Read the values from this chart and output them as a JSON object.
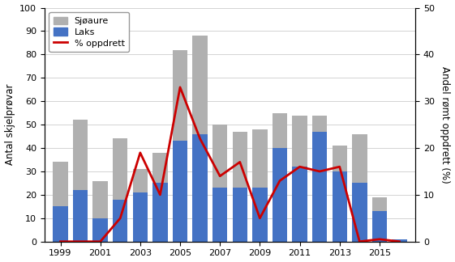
{
  "years": [
    1999,
    2000,
    2001,
    2002,
    2003,
    2004,
    2005,
    2006,
    2007,
    2008,
    2009,
    2010,
    2011,
    2012,
    2013,
    2014,
    2015,
    2016
  ],
  "laks": [
    15,
    22,
    10,
    18,
    21,
    25,
    43,
    46,
    23,
    23,
    23,
    40,
    32,
    47,
    30,
    25,
    13,
    1
  ],
  "sjoeaure": [
    19,
    30,
    16,
    26,
    10,
    13,
    39,
    42,
    27,
    24,
    25,
    15,
    22,
    7,
    11,
    21,
    6,
    0
  ],
  "pct_oppdrett": [
    0,
    0,
    0,
    5,
    19,
    10,
    33,
    22,
    14,
    17,
    5,
    13,
    16,
    15,
    16,
    0,
    0.5,
    0
  ],
  "bar_color_laks": "#4472c4",
  "bar_color_sjoeaure": "#b0b0b0",
  "line_color": "#cc0000",
  "ylabel_left": "Antal skjelprøvar",
  "ylabel_right": "Andel rømt oppdrett (%)",
  "ylim_left": [
    0,
    100
  ],
  "ylim_right": [
    0,
    50
  ],
  "yticks_left": [
    0,
    10,
    20,
    30,
    40,
    50,
    60,
    70,
    80,
    90,
    100
  ],
  "yticks_right": [
    0,
    10,
    20,
    30,
    40,
    50
  ],
  "legend_sjoeaure": "Sjøaure",
  "legend_laks": "Laks",
  "legend_pct": "% oppdrett",
  "xtick_years": [
    1999,
    2001,
    2003,
    2005,
    2007,
    2009,
    2011,
    2013,
    2015
  ],
  "background_color": "#ffffff",
  "figsize": [
    5.61,
    3.24
  ],
  "dpi": 100
}
